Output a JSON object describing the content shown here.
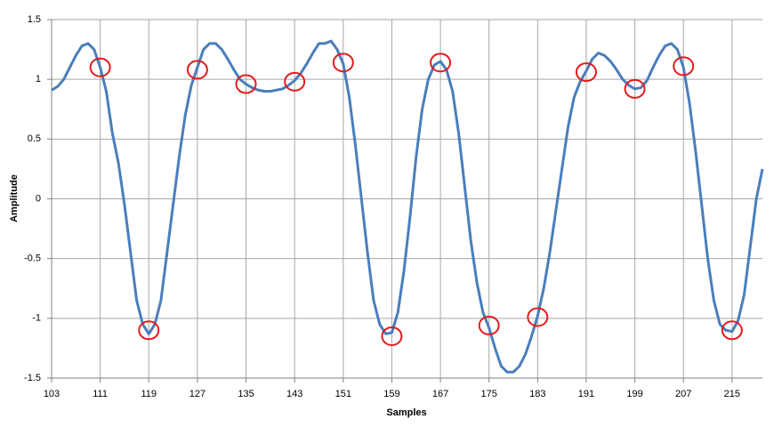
{
  "chart_data": {
    "type": "line",
    "xlabel": "Samples",
    "ylabel": "Amplitude",
    "x": [
      103,
      104,
      105,
      106,
      107,
      108,
      109,
      110,
      111,
      112,
      113,
      114,
      115,
      116,
      117,
      118,
      119,
      120,
      121,
      122,
      123,
      124,
      125,
      126,
      127,
      128,
      129,
      130,
      131,
      132,
      133,
      134,
      135,
      136,
      137,
      138,
      139,
      140,
      141,
      142,
      143,
      144,
      145,
      146,
      147,
      148,
      149,
      150,
      151,
      152,
      153,
      154,
      155,
      156,
      157,
      158,
      159,
      160,
      161,
      162,
      163,
      164,
      165,
      166,
      167,
      168,
      169,
      170,
      171,
      172,
      173,
      174,
      175,
      176,
      177,
      178,
      179,
      180,
      181,
      182,
      183,
      184,
      185,
      186,
      187,
      188,
      189,
      190,
      191,
      192,
      193,
      194,
      195,
      196,
      197,
      198,
      199,
      200,
      201,
      202,
      203,
      204,
      205,
      206,
      207,
      208,
      209,
      210,
      211,
      212,
      213,
      214,
      215,
      216,
      217,
      218,
      219,
      220
    ],
    "series": [
      {
        "color": "#4a7ebb",
        "values": [
          0.91,
          0.94,
          1.0,
          1.1,
          1.2,
          1.28,
          1.3,
          1.25,
          1.1,
          0.9,
          0.55,
          0.3,
          -0.05,
          -0.45,
          -0.85,
          -1.05,
          -1.13,
          -1.05,
          -0.85,
          -0.45,
          -0.05,
          0.35,
          0.7,
          0.95,
          1.1,
          1.25,
          1.3,
          1.3,
          1.25,
          1.17,
          1.08,
          1.0,
          0.96,
          0.93,
          0.91,
          0.9,
          0.9,
          0.91,
          0.92,
          0.95,
          0.99,
          1.05,
          1.13,
          1.22,
          1.3,
          1.3,
          1.32,
          1.25,
          1.13,
          0.85,
          0.45,
          0.0,
          -0.45,
          -0.85,
          -1.05,
          -1.13,
          -1.12,
          -0.95,
          -0.6,
          -0.15,
          0.35,
          0.75,
          1.0,
          1.12,
          1.15,
          1.08,
          0.9,
          0.55,
          0.1,
          -0.35,
          -0.7,
          -0.95,
          -1.08,
          -1.25,
          -1.4,
          -1.45,
          -1.45,
          -1.4,
          -1.3,
          -1.15,
          -0.98,
          -0.75,
          -0.45,
          -0.1,
          0.25,
          0.6,
          0.85,
          0.98,
          1.07,
          1.17,
          1.22,
          1.2,
          1.15,
          1.08,
          1.0,
          0.95,
          0.92,
          0.93,
          0.99,
          1.1,
          1.2,
          1.28,
          1.3,
          1.25,
          1.1,
          0.8,
          0.4,
          -0.05,
          -0.5,
          -0.85,
          -1.05,
          -1.1,
          -1.11,
          -1.02,
          -0.8,
          -0.4,
          0.0,
          0.25
        ]
      }
    ],
    "markers": {
      "color": "#e31a1c",
      "x": [
        111,
        119,
        127,
        135,
        143,
        151,
        159,
        167,
        175,
        183,
        191,
        199,
        207,
        215
      ],
      "values": [
        1.1,
        -1.1,
        1.08,
        0.96,
        0.98,
        1.14,
        -1.15,
        1.14,
        -1.06,
        -0.99,
        1.06,
        0.92,
        1.11,
        -1.1
      ]
    },
    "xlim": [
      103,
      220
    ],
    "ylim": [
      -1.5,
      1.5
    ],
    "xticks": [
      103,
      111,
      119,
      127,
      135,
      143,
      151,
      159,
      167,
      175,
      183,
      191,
      199,
      207,
      215
    ],
    "yticks": [
      -1.5,
      -1,
      -0.5,
      0,
      0.5,
      1,
      1.5
    ],
    "grid": true
  }
}
